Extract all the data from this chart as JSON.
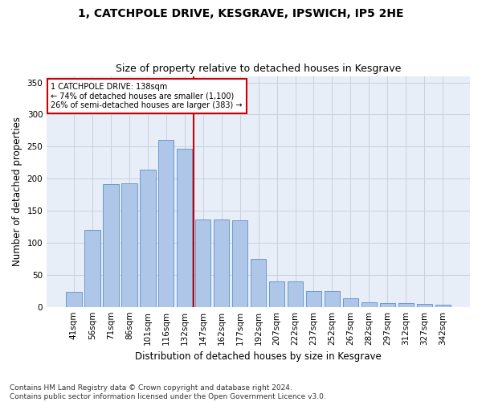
{
  "title": "1, CATCHPOLE DRIVE, KESGRAVE, IPSWICH, IP5 2HE",
  "subtitle": "Size of property relative to detached houses in Kesgrave",
  "xlabel": "Distribution of detached houses by size in Kesgrave",
  "ylabel": "Number of detached properties",
  "categories": [
    "41sqm",
    "56sqm",
    "71sqm",
    "86sqm",
    "101sqm",
    "116sqm",
    "132sqm",
    "147sqm",
    "162sqm",
    "177sqm",
    "192sqm",
    "207sqm",
    "222sqm",
    "237sqm",
    "252sqm",
    "267sqm",
    "282sqm",
    "297sqm",
    "312sqm",
    "327sqm",
    "342sqm"
  ],
  "values": [
    24,
    120,
    192,
    193,
    214,
    261,
    247,
    136,
    136,
    135,
    75,
    40,
    40,
    25,
    25,
    14,
    7,
    6,
    6,
    4,
    3
  ],
  "bar_color": "#aec6e8",
  "bar_edge_color": "#5b8fc9",
  "background_color": "#e8eef8",
  "vline_x_index": 6.5,
  "vline_color": "#cc0000",
  "annotation_text": "1 CATCHPOLE DRIVE: 138sqm\n← 74% of detached houses are smaller (1,100)\n26% of semi-detached houses are larger (383) →",
  "annotation_box_color": "#ffffff",
  "annotation_box_edge": "#cc0000",
  "ylim": [
    0,
    360
  ],
  "yticks": [
    0,
    50,
    100,
    150,
    200,
    250,
    300,
    350
  ],
  "footer_text": "Contains HM Land Registry data © Crown copyright and database right 2024.\nContains public sector information licensed under the Open Government Licence v3.0.",
  "title_fontsize": 10,
  "subtitle_fontsize": 9,
  "xlabel_fontsize": 8.5,
  "ylabel_fontsize": 8.5,
  "tick_fontsize": 7.5,
  "footer_fontsize": 6.5
}
